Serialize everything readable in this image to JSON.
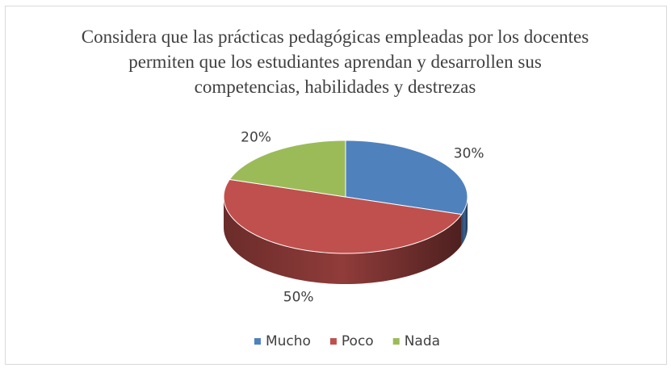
{
  "chart_data": {
    "type": "pie3d",
    "title": "Considera que las prácticas pedagógicas empleadas por los docentes permiten que los estudiantes aprendan y desarrollen sus  competencias, habilidades y destrezas",
    "categories": [
      "Mucho",
      "Poco",
      "Nada"
    ],
    "values": [
      30,
      50,
      20
    ],
    "value_labels": [
      "30%",
      "50%",
      "20%"
    ],
    "colors": [
      "#4f81bd",
      "#c0504d",
      "#9bbb59"
    ],
    "legend": "bottom"
  }
}
